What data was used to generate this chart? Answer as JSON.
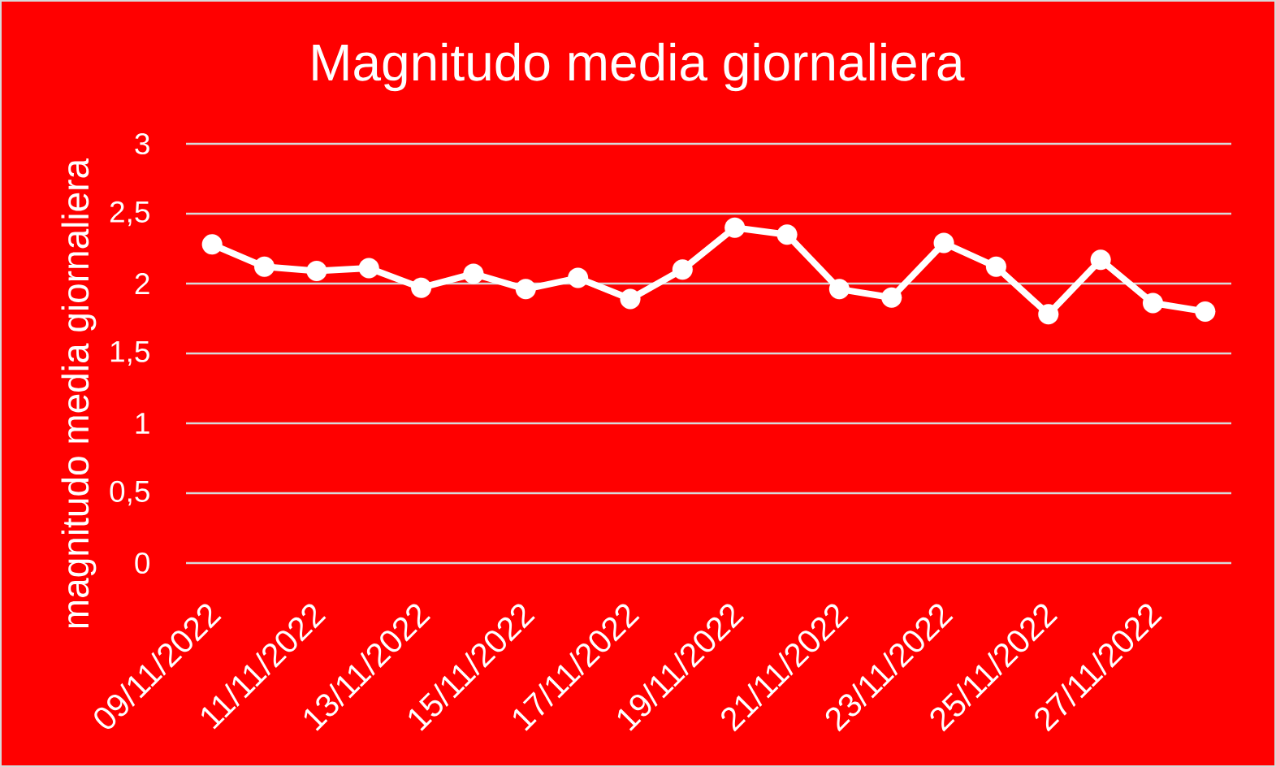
{
  "chart_data": {
    "type": "line",
    "title": "Magnitudo media giornaliera",
    "ylabel": "magnitudo media giornaliera",
    "categories": [
      "09/11/2022",
      null,
      "11/11/2022",
      null,
      "13/11/2022",
      null,
      "15/11/2022",
      null,
      "17/11/2022",
      null,
      "19/11/2022",
      null,
      "21/11/2022",
      null,
      "23/11/2022",
      null,
      "25/11/2022",
      null,
      "27/11/2022",
      null
    ],
    "series": [
      {
        "color": "#ffffff",
        "values": [
          2.28,
          2.12,
          2.09,
          2.11,
          1.97,
          2.07,
          1.96,
          2.04,
          1.89,
          2.1,
          2.4,
          2.35,
          1.96,
          1.9,
          2.29,
          2.12,
          1.78,
          2.17,
          1.86,
          1.8
        ]
      }
    ],
    "ylim": [
      0,
      3
    ],
    "yticks": [
      0,
      {
        "value": 0.5,
        "label": "0,5"
      },
      1,
      {
        "value": 1.5,
        "label": "1,5"
      },
      2,
      {
        "value": 2.5,
        "label": "2,5"
      },
      3
    ],
    "grid": "y",
    "marker": "circle",
    "line_style": "solid"
  }
}
